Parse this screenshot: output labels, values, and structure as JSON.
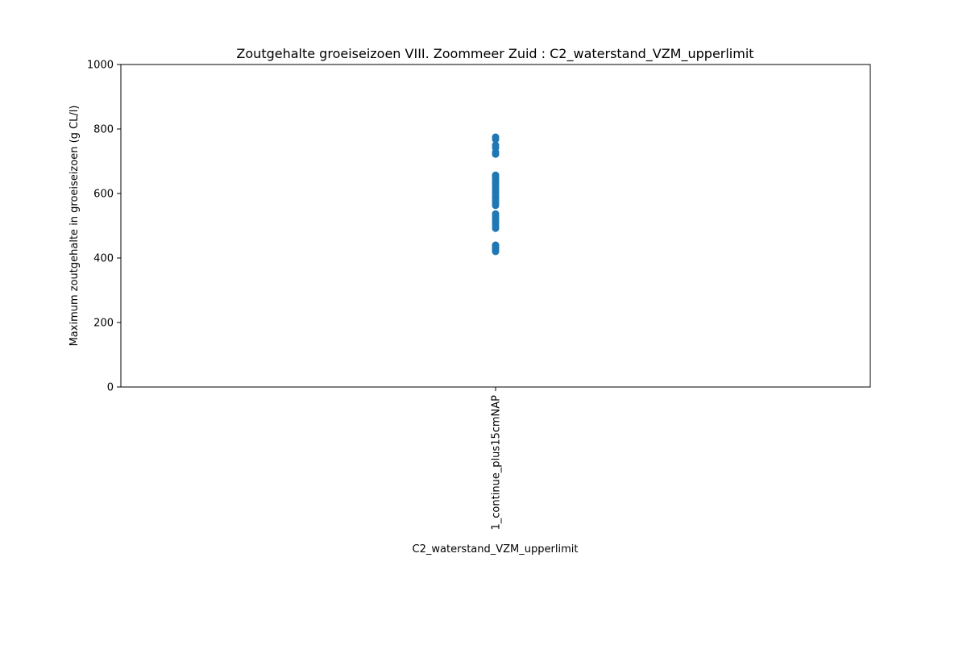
{
  "chart_data": {
    "type": "scatter",
    "title": "Zoutgehalte groeiseizoen VIII. Zoommeer Zuid : C2_waterstand_VZM_upperlimit",
    "xlabel": "C2_waterstand_VZM_upperlimit",
    "ylabel": "Maximum zoutgehalte in groeiseizoen (g CL/l)",
    "categories": [
      "1_continue_plus15cmNAP"
    ],
    "ylim": [
      0,
      1000
    ],
    "yticks": [
      0,
      200,
      400,
      600,
      800,
      1000
    ],
    "grid": false,
    "legend": "none",
    "series": [
      {
        "color": "#1f77b4",
        "points": [
          {
            "x": "1_continue_plus15cmNAP",
            "y": 420
          },
          {
            "x": "1_continue_plus15cmNAP",
            "y": 425
          },
          {
            "x": "1_continue_plus15cmNAP",
            "y": 430
          },
          {
            "x": "1_continue_plus15cmNAP",
            "y": 435
          },
          {
            "x": "1_continue_plus15cmNAP",
            "y": 440
          },
          {
            "x": "1_continue_plus15cmNAP",
            "y": 492
          },
          {
            "x": "1_continue_plus15cmNAP",
            "y": 500
          },
          {
            "x": "1_continue_plus15cmNAP",
            "y": 508
          },
          {
            "x": "1_continue_plus15cmNAP",
            "y": 515
          },
          {
            "x": "1_continue_plus15cmNAP",
            "y": 522
          },
          {
            "x": "1_continue_plus15cmNAP",
            "y": 530
          },
          {
            "x": "1_continue_plus15cmNAP",
            "y": 537
          },
          {
            "x": "1_continue_plus15cmNAP",
            "y": 563
          },
          {
            "x": "1_continue_plus15cmNAP",
            "y": 570
          },
          {
            "x": "1_continue_plus15cmNAP",
            "y": 578
          },
          {
            "x": "1_continue_plus15cmNAP",
            "y": 585
          },
          {
            "x": "1_continue_plus15cmNAP",
            "y": 592
          },
          {
            "x": "1_continue_plus15cmNAP",
            "y": 600
          },
          {
            "x": "1_continue_plus15cmNAP",
            "y": 607
          },
          {
            "x": "1_continue_plus15cmNAP",
            "y": 615
          },
          {
            "x": "1_continue_plus15cmNAP",
            "y": 622
          },
          {
            "x": "1_continue_plus15cmNAP",
            "y": 630
          },
          {
            "x": "1_continue_plus15cmNAP",
            "y": 637
          },
          {
            "x": "1_continue_plus15cmNAP",
            "y": 645
          },
          {
            "x": "1_continue_plus15cmNAP",
            "y": 652
          },
          {
            "x": "1_continue_plus15cmNAP",
            "y": 657
          },
          {
            "x": "1_continue_plus15cmNAP",
            "y": 722
          },
          {
            "x": "1_continue_plus15cmNAP",
            "y": 728
          },
          {
            "x": "1_continue_plus15cmNAP",
            "y": 742
          },
          {
            "x": "1_continue_plus15cmNAP",
            "y": 750
          },
          {
            "x": "1_continue_plus15cmNAP",
            "y": 768
          },
          {
            "x": "1_continue_plus15cmNAP",
            "y": 775
          }
        ]
      }
    ]
  }
}
